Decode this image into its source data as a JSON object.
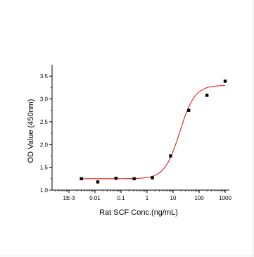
{
  "chart_data": {
    "type": "scatter",
    "xlabel": "Rat SCF Conc.(ng/mL)",
    "ylabel": "OD Value (450nm)",
    "x_scale": "log",
    "xlim": [
      0.0005,
      1000
    ],
    "ylim": [
      1.0,
      3.75
    ],
    "x_ticks": [
      {
        "value": 0.001,
        "label": "1E-3"
      },
      {
        "value": 0.01,
        "label": "0.01"
      },
      {
        "value": 0.1,
        "label": "0.1"
      },
      {
        "value": 1,
        "label": "1"
      },
      {
        "value": 10,
        "label": "10"
      },
      {
        "value": 100,
        "label": "100"
      },
      {
        "value": 1000,
        "label": "1000"
      }
    ],
    "y_ticks": [
      {
        "value": 1.0,
        "label": "1.0"
      },
      {
        "value": 1.5,
        "label": "1.5"
      },
      {
        "value": 2.0,
        "label": "2.0"
      },
      {
        "value": 2.5,
        "label": "2.5"
      },
      {
        "value": 3.0,
        "label": "3.0"
      },
      {
        "value": 3.5,
        "label": "3.5"
      }
    ],
    "grid": false,
    "series": [
      {
        "kind": "points",
        "color": "#000000",
        "points": [
          {
            "x": 0.003,
            "y": 1.25
          },
          {
            "x": 0.0128,
            "y": 1.18
          },
          {
            "x": 0.064,
            "y": 1.26
          },
          {
            "x": 0.32,
            "y": 1.25
          },
          {
            "x": 1.6,
            "y": 1.27
          },
          {
            "x": 8,
            "y": 1.75
          },
          {
            "x": 40,
            "y": 2.75
          },
          {
            "x": 200,
            "y": 3.08
          },
          {
            "x": 1000,
            "y": 3.39
          }
        ]
      },
      {
        "kind": "fit-curve",
        "color": "#e0201b",
        "model": "4PL",
        "bottom": 1.25,
        "top": 3.3,
        "ec50": 18,
        "hill": 1.5
      }
    ]
  }
}
